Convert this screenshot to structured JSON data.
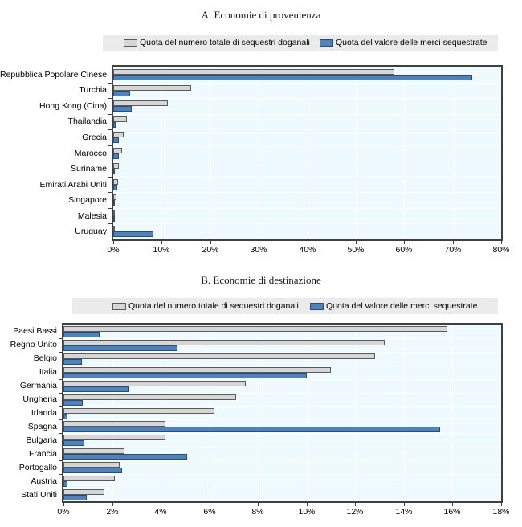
{
  "figure": {
    "panel_count": 2,
    "colors": {
      "number_series": "#d6d6d6",
      "value_series": "#4f81bd",
      "plot_background": "#eefafd",
      "legend_background": "#ebebeb",
      "gridline": "#ffffff",
      "plot_border": "#3f3f3f"
    }
  },
  "chart_data": [
    {
      "type": "bar",
      "orientation": "horizontal",
      "title": "A. Economie di provenienza",
      "legend_position": "top",
      "grid": true,
      "xlim": [
        0,
        80
      ],
      "tick_step": 10,
      "xticks": [
        "0%",
        "10%",
        "20%",
        "30%",
        "40%",
        "50%",
        "60%",
        "70%",
        "80%"
      ],
      "categories": [
        "Repubblica Popolare Cinese",
        "Turchia",
        "Hong Kong (Cina)",
        "Thailandia",
        "Grecia",
        "Marocco",
        "Suriname",
        "Emirati Arabi Uniti",
        "Singapore",
        "Malesia",
        "Uruguay"
      ],
      "series": [
        {
          "name": "Quota del numero totale di sequestri doganali",
          "color": "#d6d6d6",
          "border": "#5a5a5a",
          "values": [
            58,
            16,
            11.2,
            2.8,
            2.2,
            1.8,
            1.2,
            1.0,
            0.7,
            0.4,
            0.2
          ]
        },
        {
          "name": "Quota del valore delle merci sequestrate",
          "color": "#4f81bd",
          "border": "#2a4d75",
          "values": [
            74,
            3.4,
            3.8,
            0.5,
            1.1,
            1.1,
            0.2,
            0.9,
            0.4,
            0.1,
            8.3
          ]
        }
      ]
    },
    {
      "type": "bar",
      "orientation": "horizontal",
      "title": "B. Economie di destinazione",
      "legend_position": "top",
      "grid": true,
      "xlim": [
        0,
        18
      ],
      "tick_step": 2,
      "xticks": [
        "0%",
        "2%",
        "4%",
        "6%",
        "8%",
        "10%",
        "12%",
        "14%",
        "16%",
        "18%"
      ],
      "categories": [
        "Paesi Bassi",
        "Regno Unito",
        "Belgio",
        "Italia",
        "Germania",
        "Ungheria",
        "Irlanda",
        "Spagna",
        "Bulgaria",
        "Francia",
        "Portogallo",
        "Austria",
        "Stati Uniti"
      ],
      "series": [
        {
          "name": "Quota del numero totale di sequestri doganali",
          "color": "#d6d6d6",
          "border": "#5a5a5a",
          "values": [
            15.8,
            13.2,
            12.8,
            11.0,
            7.5,
            7.1,
            6.2,
            4.2,
            4.2,
            2.5,
            2.3,
            2.1,
            1.7
          ]
        },
        {
          "name": "Quota del valore delle merci sequestrate",
          "color": "#4f81bd",
          "border": "#2a4d75",
          "values": [
            1.5,
            4.7,
            0.75,
            10.0,
            2.7,
            0.8,
            0.15,
            15.5,
            0.85,
            5.1,
            2.4,
            0.15,
            0.95
          ]
        }
      ]
    }
  ]
}
